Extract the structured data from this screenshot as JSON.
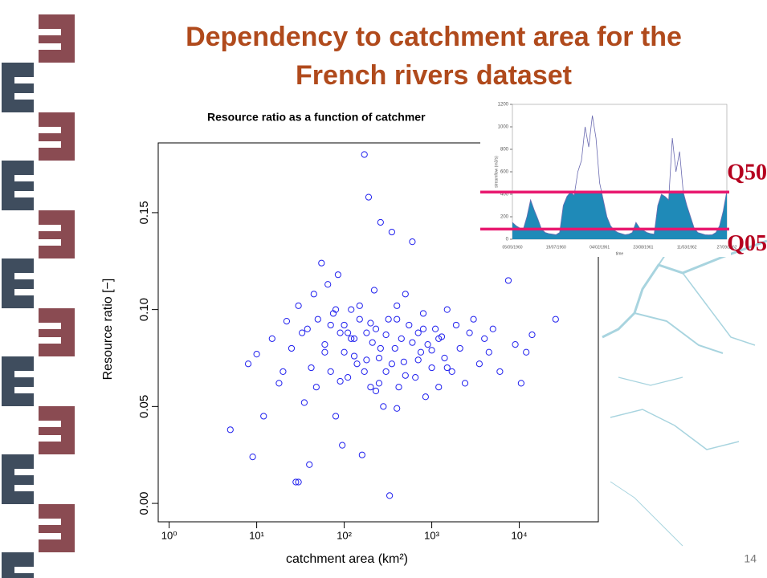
{
  "slide": {
    "title_line1": "Dependency to catchment area for the",
    "title_line2": "French rivers dataset",
    "page_number": "14"
  },
  "chart_data": [
    {
      "type": "scatter",
      "title": "Resource ratio as a function of catchmer",
      "xlabel": "catchment area (km²)",
      "ylabel": "Resource ratio [−]",
      "xscale": "log",
      "color": "#2020ee",
      "xlim": [
        0.75,
        80000
      ],
      "ylim": [
        -0.0095,
        0.186
      ],
      "xticks": [
        {
          "value": 1,
          "label": "10⁰"
        },
        {
          "value": 10,
          "label": "10¹"
        },
        {
          "value": 100,
          "label": "10²"
        },
        {
          "value": 1000,
          "label": "10³"
        },
        {
          "value": 10000,
          "label": "10⁴"
        }
      ],
      "yticks": [
        {
          "value": 0,
          "label": "0.00"
        },
        {
          "value": 0.05,
          "label": "0.05"
        },
        {
          "value": 0.1,
          "label": "0.10"
        },
        {
          "value": 0.15,
          "label": "0.15"
        }
      ],
      "x": [
        5,
        8,
        9,
        10,
        12,
        15,
        18,
        20,
        22,
        25,
        28,
        30,
        30,
        33,
        35,
        38,
        40,
        42,
        45,
        48,
        50,
        55,
        60,
        65,
        70,
        75,
        80,
        85,
        90,
        95,
        100,
        100,
        110,
        120,
        130,
        140,
        150,
        160,
        170,
        180,
        190,
        200,
        210,
        220,
        230,
        250,
        260,
        280,
        300,
        320,
        330,
        350,
        380,
        400,
        420,
        450,
        480,
        500,
        550,
        600,
        650,
        700,
        750,
        800,
        850,
        900,
        1000,
        1100,
        1200,
        1300,
        1400,
        1500,
        1700,
        1900,
        2100,
        2400,
        2700,
        3000,
        3500,
        4000,
        4500,
        5000,
        6000,
        7500,
        9000,
        10500,
        12000,
        14000,
        26000,
        60,
        70,
        90,
        110,
        130,
        150,
        170,
        200,
        230,
        260,
        300,
        350,
        400,
        500,
        600,
        700,
        800,
        1000,
        1200,
        1500,
        80,
        120,
        180,
        250,
        400
      ],
      "values": [
        0.038,
        0.072,
        0.024,
        0.077,
        0.045,
        0.085,
        0.062,
        0.068,
        0.094,
        0.08,
        0.011,
        0.011,
        0.102,
        0.088,
        0.052,
        0.09,
        0.02,
        0.07,
        0.108,
        0.06,
        0.095,
        0.124,
        0.082,
        0.113,
        0.068,
        0.098,
        0.045,
        0.118,
        0.088,
        0.03,
        0.092,
        0.078,
        0.065,
        0.1,
        0.085,
        0.072,
        0.095,
        0.025,
        0.18,
        0.088,
        0.158,
        0.06,
        0.083,
        0.11,
        0.09,
        0.075,
        0.145,
        0.05,
        0.068,
        0.095,
        0.004,
        0.14,
        0.08,
        0.102,
        0.06,
        0.085,
        0.073,
        0.108,
        0.092,
        0.135,
        0.065,
        0.088,
        0.078,
        0.098,
        0.055,
        0.082,
        0.07,
        0.09,
        0.06,
        0.086,
        0.075,
        0.1,
        0.068,
        0.092,
        0.08,
        0.062,
        0.088,
        0.095,
        0.072,
        0.085,
        0.078,
        0.09,
        0.068,
        0.115,
        0.082,
        0.062,
        0.078,
        0.087,
        0.095,
        0.078,
        0.092,
        0.063,
        0.088,
        0.076,
        0.102,
        0.068,
        0.093,
        0.058,
        0.08,
        0.087,
        0.072,
        0.095,
        0.066,
        0.083,
        0.074,
        0.09,
        0.079,
        0.085,
        0.07,
        0.1,
        0.085,
        0.074,
        0.062,
        0.049
      ]
    },
    {
      "type": "area",
      "xlabel": "time",
      "ylabel": "streamflow (m3/s)",
      "categories": [
        "05/05/1960",
        null,
        null,
        null,
        null,
        null,
        null,
        null,
        null,
        null,
        null,
        null,
        "19/07/1960",
        null,
        null,
        null,
        null,
        null,
        null,
        null,
        null,
        null,
        null,
        null,
        "04/02/1961",
        null,
        null,
        null,
        null,
        null,
        null,
        null,
        null,
        null,
        null,
        null,
        "23/08/1961",
        null,
        null,
        null,
        null,
        null,
        null,
        null,
        null,
        null,
        null,
        null,
        "11/03/1962",
        null,
        null,
        null,
        null,
        null,
        null,
        null,
        null,
        null,
        null,
        "27/09/1962"
      ],
      "values": [
        150,
        120,
        100,
        90,
        200,
        350,
        260,
        180,
        90,
        60,
        50,
        45,
        40,
        60,
        300,
        380,
        420,
        390,
        600,
        700,
        1000,
        820,
        1100,
        900,
        500,
        350,
        200,
        120,
        80,
        60,
        50,
        40,
        45,
        60,
        150,
        100,
        80,
        60,
        50,
        45,
        300,
        400,
        380,
        350,
        900,
        600,
        780,
        420,
        300,
        200,
        100,
        60,
        50,
        40,
        38,
        40,
        60,
        120,
        250,
        430
      ],
      "ylim": [
        0,
        1200
      ],
      "yticks": [
        0,
        200,
        400,
        600,
        800,
        1000,
        1200
      ],
      "line_color": "#6a6ab0",
      "fill_color": "#1f8ab8",
      "threshold_color": "#e8186f",
      "annotations": [
        {
          "label": "Q50",
          "value": 420
        },
        {
          "label": "Q05",
          "value": 90
        }
      ]
    }
  ]
}
